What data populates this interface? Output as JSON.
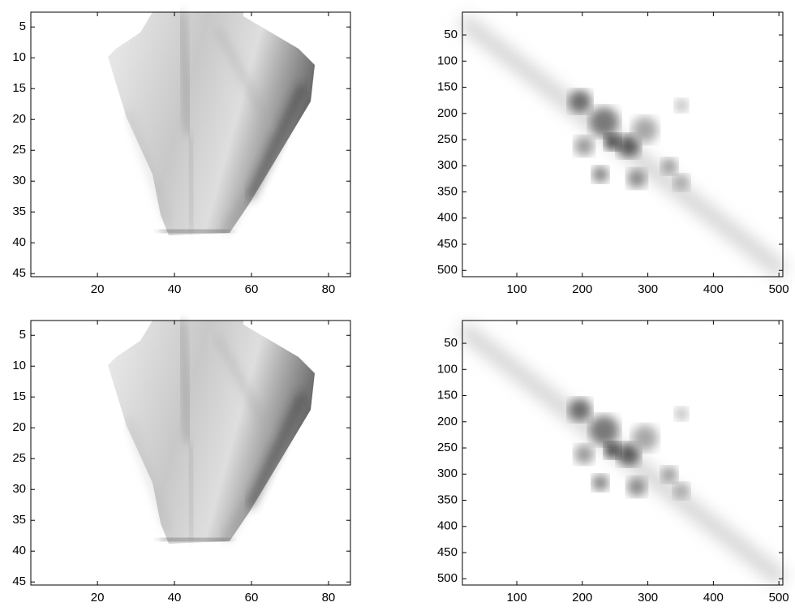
{
  "chart_data": [
    {
      "type": "image",
      "xlim": [
        2.7,
        85.7
      ],
      "ylim": [
        45.5,
        2.6
      ],
      "xticks": [
        20,
        40,
        60,
        80
      ],
      "yticks": [
        5,
        10,
        15,
        20,
        25,
        30,
        35,
        40,
        45
      ]
    },
    {
      "type": "image",
      "xlim": [
        17,
        506
      ],
      "ylim": [
        512,
        6.5
      ],
      "xticks": [
        100,
        200,
        300,
        400,
        500
      ],
      "yticks": [
        50,
        100,
        150,
        200,
        250,
        300,
        350,
        400,
        450,
        500
      ]
    },
    {
      "type": "image",
      "xlim": [
        2.7,
        85.7
      ],
      "ylim": [
        45.5,
        2.6
      ],
      "xticks": [
        20,
        40,
        60,
        80
      ],
      "yticks": [
        5,
        10,
        15,
        20,
        25,
        30,
        35,
        40,
        45
      ]
    },
    {
      "type": "image",
      "xlim": [
        17,
        506
      ],
      "ylim": [
        512,
        6.5
      ],
      "xticks": [
        100,
        200,
        300,
        400,
        500
      ],
      "yticks": [
        50,
        100,
        150,
        200,
        250,
        300,
        350,
        400,
        450,
        500
      ]
    }
  ]
}
